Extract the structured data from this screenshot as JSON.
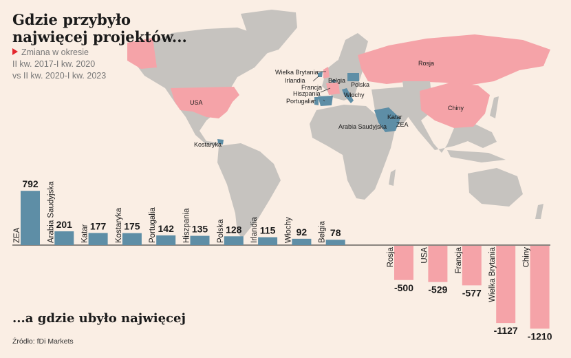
{
  "title": "Gdzie przybyło najwięcej projektów...",
  "legend": {
    "marker": "Zmiana w okresie",
    "line1": "II kw. 2017-I kw. 2020",
    "line2": "vs II kw. 2020-I kw. 2023"
  },
  "subtitle_bottom": "...a gdzie ubyło najwięcej",
  "source": "Źródło: fDi Markets",
  "colors": {
    "positive": "#5e8ea6",
    "negative": "#f5a3a8",
    "land": "#c6c3bf",
    "background": "#faeee4",
    "marker": "#e3262e"
  },
  "map_labels": {
    "usa": "USA",
    "kostaryka": "Kostaryka",
    "rosja": "Rosja",
    "chiny": "Chiny",
    "wielka_brytania": "Wielka Brytania",
    "irlandia": "Irlandia",
    "belgia": "Belgia",
    "francja": "Francja",
    "hiszpania": "Hiszpania",
    "portugalia": "Portugalia",
    "polska": "Polska",
    "wlochy": "Włochy",
    "katar": "Katar",
    "zea": "ZEA",
    "arabia_saudyjska": "Arabia Saudyjska"
  },
  "chart_data": {
    "type": "bar",
    "categories": [
      "ZEA",
      "Arabia Saudyjska",
      "Katar",
      "Kostaryka",
      "Portugalia",
      "Hiszpania",
      "Polska",
      "Irlandia",
      "Włochy",
      "Belgia",
      "Rosja",
      "USA",
      "Francja",
      "Wielka Brytania",
      "Chiny"
    ],
    "values": [
      792,
      201,
      177,
      175,
      142,
      135,
      128,
      115,
      92,
      78,
      -500,
      -529,
      -577,
      -1127,
      -1210
    ]
  }
}
